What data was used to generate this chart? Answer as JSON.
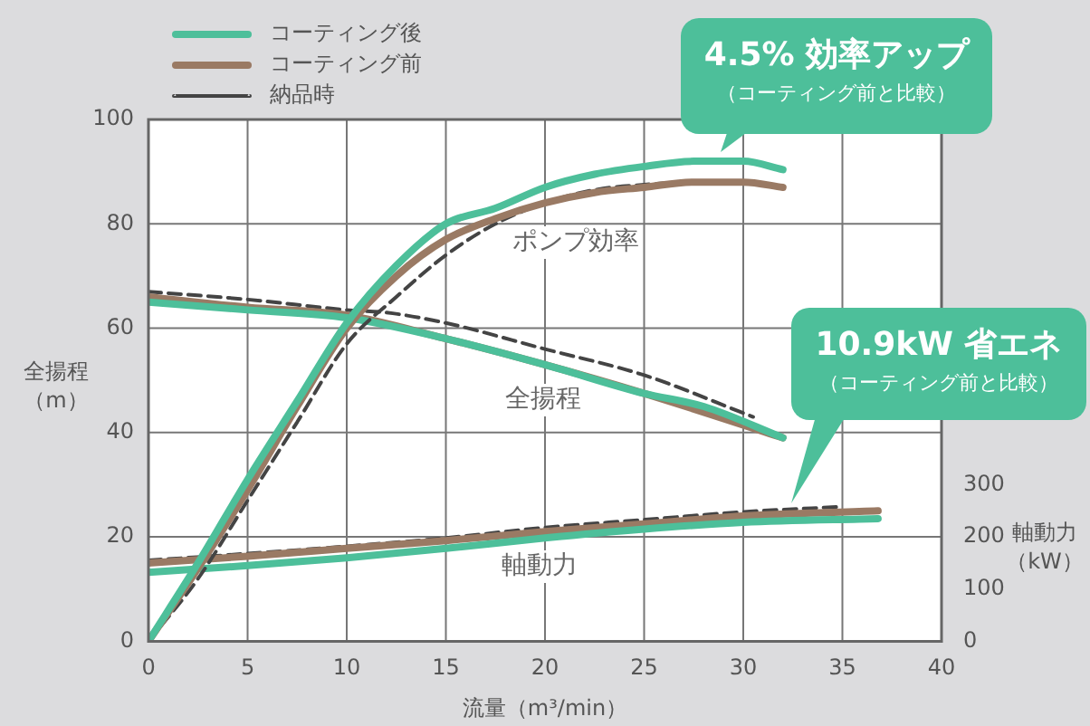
{
  "chart_data": {
    "type": "line",
    "xlabel": "流量（m³/min）",
    "ylabel": "全揚程（m）",
    "y2label": "軸動力（kW）",
    "xlim": [
      0,
      40
    ],
    "xticks": [
      0,
      5,
      10,
      15,
      20,
      25,
      30,
      35,
      40
    ],
    "ylim": [
      0,
      100
    ],
    "yticks": [
      0,
      20,
      40,
      60,
      80,
      100
    ],
    "y2lim": [
      0,
      1000
    ],
    "y2ticks": [
      0,
      100,
      200,
      300
    ],
    "grid": true,
    "legend": "top left",
    "marker": "none",
    "series": [
      {
        "name": "コーティング後",
        "color": "#4dbf9a",
        "line_style": "solid",
        "x": [
          0,
          2.5,
          5,
          7.5,
          10,
          12.5,
          15,
          17.5,
          20,
          22.5,
          25,
          27.5,
          30,
          32
        ],
        "values": [
          0,
          15,
          31,
          46,
          61,
          72,
          80,
          83,
          87,
          89.5,
          91,
          92,
          92,
          90.4
        ]
      },
      {
        "name": "コーティング前",
        "color": "#9a7a64",
        "line_style": "solid",
        "x": [
          0,
          2.5,
          5,
          7.5,
          10,
          12.5,
          15,
          17.5,
          20,
          22.5,
          25,
          27.5,
          30,
          32
        ],
        "values": [
          0,
          14,
          29,
          45,
          60,
          70,
          77,
          81,
          84,
          86,
          87,
          88,
          88,
          87
        ]
      },
      {
        "name": "納品時",
        "color": "#444444",
        "line_style": "dashed",
        "x": [
          0,
          2.5,
          5,
          7.5,
          10,
          12.5,
          15,
          17.5,
          20,
          22.5,
          25,
          27.5,
          30,
          31
        ],
        "values": [
          0,
          12,
          27,
          42,
          57,
          66,
          74,
          80,
          84,
          86.5,
          87.5,
          88,
          88,
          87.5
        ]
      },
      {
        "color": "#4dbf9a",
        "line_style": "solid",
        "x": [
          0,
          5,
          10,
          15,
          20,
          25,
          28,
          32
        ],
        "values": [
          65,
          63.5,
          62,
          58,
          53,
          47.5,
          45,
          39
        ]
      },
      {
        "color": "#9a7a64",
        "line_style": "solid",
        "x": [
          0,
          5,
          10,
          15,
          20,
          25,
          32
        ],
        "values": [
          66,
          64,
          62.5,
          58,
          53,
          47.5,
          39
        ]
      },
      {
        "color": "#444444",
        "line_style": "dashed",
        "x": [
          0,
          5,
          10,
          12,
          15,
          20,
          25,
          30.5
        ],
        "values": [
          67,
          65.5,
          63.5,
          63,
          61,
          56,
          51,
          43
        ]
      },
      {
        "color": "#4dbf9a",
        "line_style": "solid",
        "axis": "y2",
        "x": [
          0,
          5,
          10,
          15,
          20,
          25,
          30,
          36.8
        ],
        "values": [
          132,
          145,
          160,
          178,
          198,
          215,
          228,
          235
        ]
      },
      {
        "color": "#9a7a64",
        "line_style": "solid",
        "axis": "y2",
        "x": [
          0,
          5,
          10,
          15,
          20,
          25,
          30,
          36.8
        ],
        "values": [
          150,
          163,
          178,
          193,
          210,
          225,
          240,
          250
        ]
      },
      {
        "color": "#444444",
        "line_style": "dashed",
        "axis": "y2",
        "x": [
          0,
          5,
          10,
          15,
          20,
          25,
          30,
          35
        ],
        "values": [
          155,
          168,
          182,
          198,
          218,
          233,
          248,
          258
        ]
      }
    ],
    "annotations": [
      "4.5% 効率アップ",
      "（コーティング前と比較）",
      "10.9kW 省エネ",
      "（コーティング前と比較）",
      "ポンプ効率",
      "全揚程",
      "軸動力"
    ]
  }
}
